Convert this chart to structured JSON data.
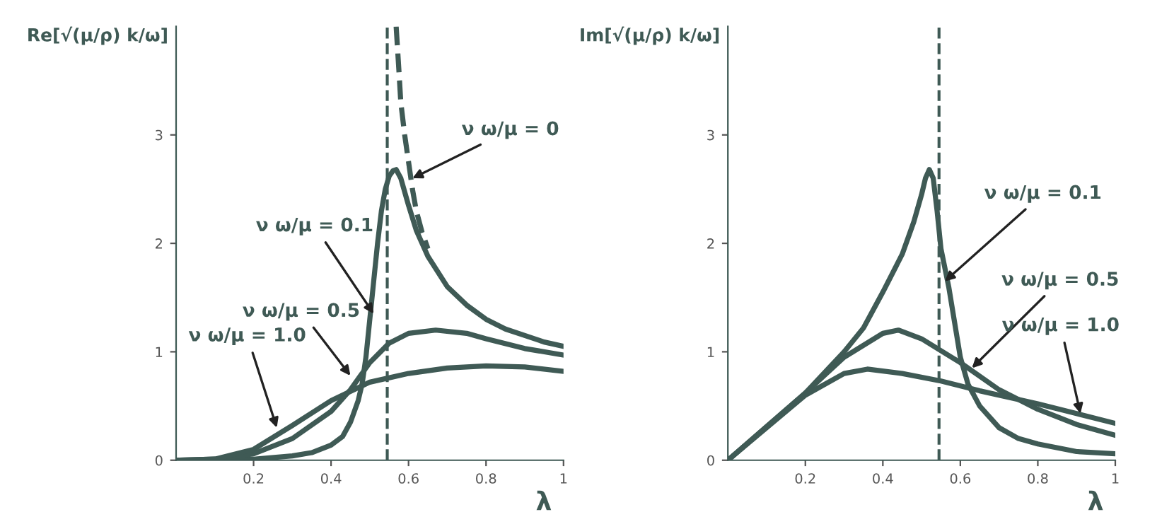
{
  "chart_data": [
    {
      "type": "line",
      "ylabel": "Re[√(μ/ρ) k/ω]",
      "xlabel": "λ",
      "xlim": [
        0,
        1
      ],
      "ylim": [
        0,
        4
      ],
      "xticks": [
        0.2,
        0.4,
        0.6,
        0.8,
        1
      ],
      "yticks": [
        0,
        1,
        2,
        3
      ],
      "grid": false,
      "legend": false,
      "marker": "none",
      "series": [
        {
          "color": "#3f5a55",
          "line_style": "dashed",
          "x": [
            0.568,
            0.575,
            0.58,
            0.59,
            0.6,
            0.61,
            0.62,
            0.635,
            0.65
          ],
          "values": [
            4.0,
            3.6,
            3.3,
            3.0,
            2.75,
            2.5,
            2.3,
            2.1,
            1.95
          ]
        },
        {
          "color": "#3f5a55",
          "line_style": "solid",
          "x": [
            0,
            0.1,
            0.2,
            0.3,
            0.35,
            0.4,
            0.43,
            0.45,
            0.47,
            0.48,
            0.49,
            0.5,
            0.51,
            0.52,
            0.53,
            0.54,
            0.55,
            0.56,
            0.568,
            0.58,
            0.6,
            0.62,
            0.65,
            0.7,
            0.75,
            0.8,
            0.85,
            0.9,
            0.95,
            1.0
          ],
          "values": [
            0,
            0.0,
            0.01,
            0.04,
            0.07,
            0.14,
            0.22,
            0.35,
            0.55,
            0.7,
            0.95,
            1.3,
            1.65,
            2.0,
            2.3,
            2.5,
            2.62,
            2.67,
            2.68,
            2.6,
            2.35,
            2.12,
            1.88,
            1.6,
            1.43,
            1.3,
            1.21,
            1.15,
            1.09,
            1.05
          ]
        },
        {
          "color": "#3f5a55",
          "line_style": "solid",
          "x": [
            0,
            0.1,
            0.2,
            0.3,
            0.4,
            0.45,
            0.5,
            0.55,
            0.6,
            0.67,
            0.75,
            0.8,
            0.9,
            1.0
          ],
          "values": [
            0,
            0.01,
            0.06,
            0.2,
            0.45,
            0.65,
            0.9,
            1.08,
            1.17,
            1.2,
            1.17,
            1.12,
            1.03,
            0.97
          ]
        },
        {
          "color": "#3f5a55",
          "line_style": "solid",
          "x": [
            0,
            0.1,
            0.2,
            0.3,
            0.4,
            0.5,
            0.6,
            0.7,
            0.8,
            0.9,
            1.0
          ],
          "values": [
            0,
            0.01,
            0.1,
            0.32,
            0.55,
            0.72,
            0.8,
            0.85,
            0.87,
            0.86,
            0.82
          ]
        }
      ],
      "ref_lines": [
        {
          "axis": "x",
          "value": 0.545,
          "line_style": "dashed",
          "color": "#3f5a55"
        }
      ],
      "annotations": [
        {
          "text": "ν ω/μ = 0",
          "x": 0.61,
          "y": 2.6
        },
        {
          "text": "ν ω/μ = 0.1",
          "x": 0.51,
          "y": 1.35
        },
        {
          "text": "ν ω/μ = 0.5",
          "x": 0.45,
          "y": 0.78
        },
        {
          "text": "ν ω/μ = 1.0",
          "x": 0.26,
          "y": 0.3
        }
      ]
    },
    {
      "type": "line",
      "ylabel": "Im[√(μ/ρ) k/ω]",
      "xlabel": "λ",
      "xlim": [
        0,
        1
      ],
      "ylim": [
        0,
        4
      ],
      "xticks": [
        0.2,
        0.4,
        0.6,
        0.8,
        1
      ],
      "yticks": [
        0,
        1,
        2,
        3
      ],
      "grid": false,
      "legend": false,
      "marker": "none",
      "series": [
        {
          "color": "#3f5a55",
          "line_style": "solid",
          "x": [
            0,
            0.1,
            0.2,
            0.3,
            0.35,
            0.4,
            0.45,
            0.48,
            0.5,
            0.51,
            0.52,
            0.53,
            0.54,
            0.55,
            0.57,
            0.6,
            0.62,
            0.65,
            0.7,
            0.75,
            0.8,
            0.9,
            1.0
          ],
          "values": [
            0,
            0.31,
            0.62,
            1.0,
            1.22,
            1.55,
            1.9,
            2.2,
            2.45,
            2.6,
            2.68,
            2.6,
            2.3,
            1.95,
            1.6,
            0.95,
            0.7,
            0.5,
            0.3,
            0.2,
            0.15,
            0.08,
            0.06
          ]
        },
        {
          "color": "#3f5a55",
          "line_style": "solid",
          "x": [
            0,
            0.1,
            0.2,
            0.3,
            0.4,
            0.44,
            0.5,
            0.6,
            0.7,
            0.8,
            0.9,
            1.0
          ],
          "values": [
            0,
            0.31,
            0.62,
            0.95,
            1.17,
            1.2,
            1.12,
            0.9,
            0.65,
            0.47,
            0.33,
            0.23
          ]
        },
        {
          "color": "#3f5a55",
          "line_style": "solid",
          "x": [
            0,
            0.1,
            0.2,
            0.3,
            0.36,
            0.45,
            0.55,
            0.65,
            0.8,
            0.9,
            1.0
          ],
          "values": [
            0,
            0.3,
            0.6,
            0.8,
            0.84,
            0.8,
            0.73,
            0.64,
            0.52,
            0.43,
            0.34
          ]
        }
      ],
      "ref_lines": [
        {
          "axis": "x",
          "value": 0.545,
          "line_style": "dashed",
          "color": "#3f5a55"
        }
      ],
      "annotations": [
        {
          "text": "ν ω/μ = 0.1",
          "x": 0.56,
          "y": 1.65
        },
        {
          "text": "ν ω/μ = 0.5",
          "x": 0.63,
          "y": 0.85
        },
        {
          "text": "ν ω/μ = 1.0",
          "x": 0.91,
          "y": 0.43
        }
      ]
    }
  ]
}
